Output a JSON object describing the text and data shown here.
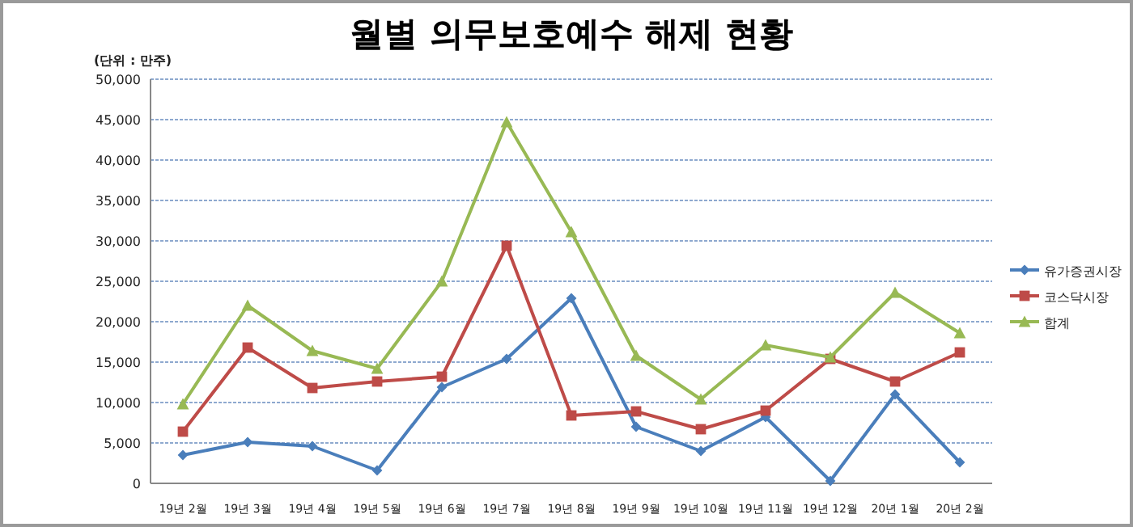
{
  "chart_data": {
    "type": "line",
    "title": "월별 의무보호예수 해제 현황",
    "annotations": [
      "(단위 : 만주)"
    ],
    "categories": [
      "19년 2월",
      "19년 3월",
      "19년 4월",
      "19년 5월",
      "19년 6월",
      "19년 7월",
      "19년 8월",
      "19년 9월",
      "19년 10월",
      "19년 11월",
      "19년 12월",
      "20년 1월",
      "20년 2월"
    ],
    "series": [
      {
        "name": "유가증권시장",
        "color": "#4a7ebb",
        "marker": "diamond",
        "values": [
          3500,
          5100,
          4600,
          1600,
          11900,
          15400,
          22900,
          7000,
          4000,
          8200,
          300,
          11000,
          2600
        ]
      },
      {
        "name": "코스닥시장",
        "color": "#be4b48",
        "marker": "square",
        "values": [
          6400,
          16800,
          11800,
          12600,
          13200,
          29400,
          8400,
          8900,
          6700,
          9000,
          15400,
          12600,
          16200
        ]
      },
      {
        "name": "합계",
        "color": "#98b954",
        "marker": "triangle",
        "values": [
          9800,
          22000,
          16400,
          14200,
          25000,
          44700,
          31100,
          15800,
          10400,
          17100,
          15600,
          23600,
          18600
        ]
      }
    ],
    "ylim": [
      0,
      50000
    ],
    "yticks": [
      0,
      {
        "value": 5000,
        "label": "5,000"
      },
      {
        "value": 10000,
        "label": "10,000"
      },
      {
        "value": 15000,
        "label": "15,000"
      },
      {
        "value": 20000,
        "label": "20,000"
      },
      {
        "value": 25000,
        "label": "25,000"
      },
      {
        "value": 30000,
        "label": "30,000"
      },
      {
        "value": 35000,
        "label": "35,000"
      },
      {
        "value": 40000,
        "label": "40,000"
      },
      {
        "value": 45000,
        "label": "45,000"
      },
      {
        "value": 50000,
        "label": "50,000"
      }
    ],
    "grid": "y",
    "legend": "right",
    "line_style": "solid"
  }
}
